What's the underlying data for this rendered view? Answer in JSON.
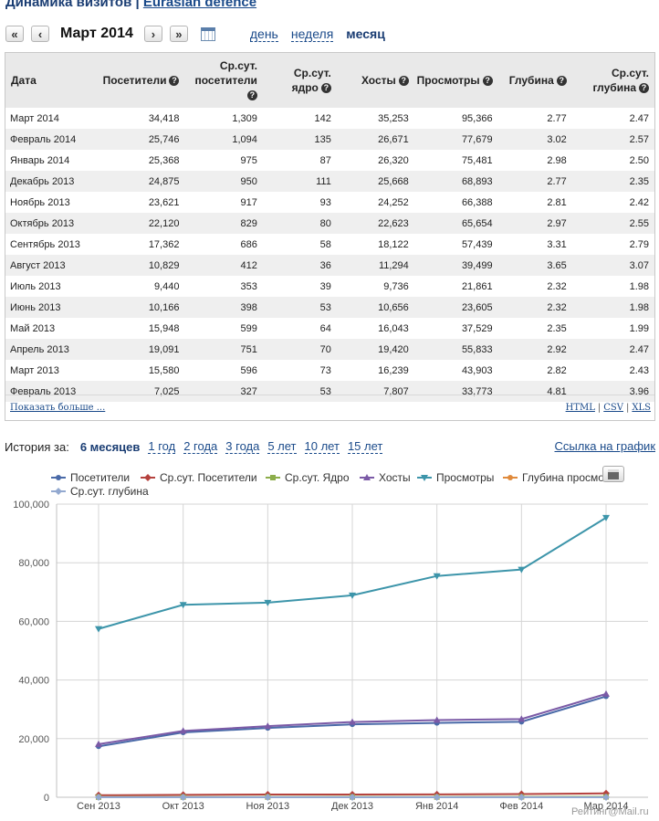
{
  "header": {
    "title_prefix": "Динамика визитов |",
    "site_link": "Eurasian defence"
  },
  "nav": {
    "first": "«",
    "prev": "‹",
    "current": "Март 2014",
    "next": "›",
    "last": "»",
    "periods": [
      {
        "label": "день",
        "active": false
      },
      {
        "label": "неделя",
        "active": false
      },
      {
        "label": "месяц",
        "active": true
      }
    ]
  },
  "table": {
    "columns": [
      {
        "label": "Дата",
        "help": false
      },
      {
        "label": "Посетители",
        "help": true
      },
      {
        "label": "Ср.сут. посетители",
        "help": true
      },
      {
        "label": "Ср.сут. ядро",
        "help": true
      },
      {
        "label": "Хосты",
        "help": true
      },
      {
        "label": "Просмотры",
        "help": true
      },
      {
        "label": "Глубина",
        "help": true
      },
      {
        "label": "Ср.сут. глубина",
        "help": true
      }
    ],
    "help_glyph": "?",
    "rows": [
      [
        "Март 2014",
        "34,418",
        "1,309",
        "142",
        "35,253",
        "95,366",
        "2.77",
        "2.47"
      ],
      [
        "Февраль 2014",
        "25,746",
        "1,094",
        "135",
        "26,671",
        "77,679",
        "3.02",
        "2.57"
      ],
      [
        "Январь 2014",
        "25,368",
        "975",
        "87",
        "26,320",
        "75,481",
        "2.98",
        "2.50"
      ],
      [
        "Декабрь 2013",
        "24,875",
        "950",
        "111",
        "25,668",
        "68,893",
        "2.77",
        "2.35"
      ],
      [
        "Ноябрь 2013",
        "23,621",
        "917",
        "93",
        "24,252",
        "66,388",
        "2.81",
        "2.42"
      ],
      [
        "Октябрь 2013",
        "22,120",
        "829",
        "80",
        "22,623",
        "65,654",
        "2.97",
        "2.55"
      ],
      [
        "Сентябрь 2013",
        "17,362",
        "686",
        "58",
        "18,122",
        "57,439",
        "3.31",
        "2.79"
      ],
      [
        "Август 2013",
        "10,829",
        "412",
        "36",
        "11,294",
        "39,499",
        "3.65",
        "3.07"
      ],
      [
        "Июль 2013",
        "9,440",
        "353",
        "39",
        "9,736",
        "21,861",
        "2.32",
        "1.98"
      ],
      [
        "Июнь 2013",
        "10,166",
        "398",
        "53",
        "10,656",
        "23,605",
        "2.32",
        "1.98"
      ],
      [
        "Май 2013",
        "15,948",
        "599",
        "64",
        "16,043",
        "37,529",
        "2.35",
        "1.99"
      ],
      [
        "Апрель 2013",
        "19,091",
        "751",
        "70",
        "19,420",
        "55,833",
        "2.92",
        "2.47"
      ],
      [
        "Март 2013",
        "15,580",
        "596",
        "73",
        "16,239",
        "43,903",
        "2.82",
        "2.43"
      ],
      [
        "Февраль 2013",
        "7,025",
        "327",
        "53",
        "7,807",
        "33,773",
        "4.81",
        "3.96"
      ]
    ],
    "show_more": "Показать больше ...",
    "exports": [
      "HTML",
      "CSV",
      "XLS"
    ],
    "export_sep": "|"
  },
  "history": {
    "label": "История за:",
    "options": [
      {
        "label": "6 месяцев",
        "active": true
      },
      {
        "label": "1 год",
        "active": false
      },
      {
        "label": "2 года",
        "active": false
      },
      {
        "label": "3 года",
        "active": false
      },
      {
        "label": "5 лет",
        "active": false
      },
      {
        "label": "10 лет",
        "active": false
      },
      {
        "label": "15 лет",
        "active": false
      }
    ],
    "chart_link": "Ссылка на график"
  },
  "icons": {
    "print": "print-icon",
    "calendar": "calendar-icon"
  },
  "chart_data": {
    "type": "line",
    "categories": [
      "Сен 2013",
      "Окт 2013",
      "Ноя 2013",
      "Дек 2013",
      "Янв 2014",
      "Фев 2014",
      "Мар 2014"
    ],
    "ylim": [
      0,
      100000
    ],
    "yticks": [
      "0",
      "20,000",
      "40,000",
      "60,000",
      "80,000",
      "100,000"
    ],
    "ytick_values": [
      0,
      20000,
      40000,
      60000,
      80000,
      100000
    ],
    "grid": true,
    "legend_placement": "top",
    "series": [
      {
        "name": "Посетители",
        "color": "#4a6aa8",
        "marker": "circle",
        "values": [
          17362,
          22120,
          23621,
          24875,
          25368,
          25746,
          34418
        ]
      },
      {
        "name": "Ср.сут. Посетители",
        "color": "#b5423e",
        "marker": "diamond",
        "values": [
          686,
          829,
          917,
          950,
          975,
          1094,
          1309
        ]
      },
      {
        "name": "Ср.сут. Ядро",
        "color": "#8cad4a",
        "marker": "square",
        "values": [
          58,
          80,
          93,
          111,
          87,
          135,
          142
        ]
      },
      {
        "name": "Хосты",
        "color": "#7b5aa6",
        "marker": "triangle",
        "values": [
          18122,
          22623,
          24252,
          25668,
          26320,
          26671,
          35253
        ]
      },
      {
        "name": "Просмотры",
        "color": "#3d95aa",
        "marker": "triangle-down",
        "values": [
          57439,
          65654,
          66388,
          68893,
          75481,
          77679,
          95366
        ]
      },
      {
        "name": "Глубина просмотра",
        "color": "#e08a3c",
        "marker": "circle",
        "values": [
          3.31,
          2.97,
          2.81,
          2.77,
          2.98,
          3.02,
          2.77
        ]
      },
      {
        "name": "Ср.сут. глубина",
        "color": "#93a9d0",
        "marker": "diamond",
        "values": [
          2.79,
          2.55,
          2.42,
          2.35,
          2.5,
          2.57,
          2.47
        ]
      }
    ],
    "legend_visible_labels": [
      "Посетители",
      "Ср.сут. Посетители",
      "Ср.сут. Ядро",
      "Хосты",
      "Просмотры",
      "Глубина просмо",
      "Ср.сут. глубина"
    ]
  },
  "footer": {
    "credit": "Рейтинг@Mail.ru"
  }
}
